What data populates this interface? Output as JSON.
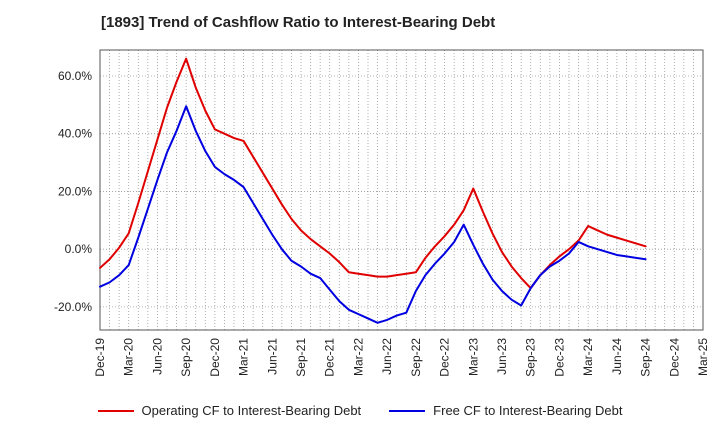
{
  "title": "[1893]  Trend of Cashflow Ratio to Interest-Bearing Debt",
  "colors": {
    "operating": "#e00000",
    "free": "#0000e0",
    "grid": "#999999"
  },
  "chart_data": {
    "type": "line",
    "title": "[1893]  Trend of Cashflow Ratio to Interest-Bearing Debt",
    "xlabel": "",
    "ylabel": "",
    "x": [
      "Dec-19",
      "Jan-20",
      "Feb-20",
      "Mar-20",
      "Apr-20",
      "May-20",
      "Jun-20",
      "Jul-20",
      "Aug-20",
      "Sep-20",
      "Oct-20",
      "Nov-20",
      "Dec-20",
      "Jan-21",
      "Feb-21",
      "Mar-21",
      "Apr-21",
      "May-21",
      "Jun-21",
      "Jul-21",
      "Aug-21",
      "Sep-21",
      "Oct-21",
      "Nov-21",
      "Dec-21",
      "Jan-22",
      "Feb-22",
      "Mar-22",
      "Apr-22",
      "May-22",
      "Jun-22",
      "Jul-22",
      "Aug-22",
      "Sep-22",
      "Oct-22",
      "Nov-22",
      "Dec-22",
      "Jan-23",
      "Feb-23",
      "Mar-23",
      "Apr-23",
      "May-23",
      "Jun-23",
      "Jul-23",
      "Aug-23",
      "Sep-23",
      "Oct-23",
      "Nov-23",
      "Dec-23",
      "Jan-24",
      "Feb-24",
      "Mar-24",
      "Apr-24",
      "May-24",
      "Jun-24",
      "Jul-24",
      "Aug-24",
      "Sep-24"
    ],
    "x_ticks": [
      "Dec-19",
      "Mar-20",
      "Jun-20",
      "Sep-20",
      "Dec-20",
      "Mar-21",
      "Jun-21",
      "Sep-21",
      "Dec-21",
      "Mar-22",
      "Jun-22",
      "Sep-22",
      "Dec-22",
      "Mar-23",
      "Jun-23",
      "Sep-23",
      "Dec-23",
      "Mar-24",
      "Jun-24",
      "Sep-24",
      "Dec-24",
      "Mar-25"
    ],
    "x_range": [
      "Dec-19",
      "Mar-25"
    ],
    "ylim": [
      -28,
      69
    ],
    "y_ticks": [
      -20,
      0,
      20,
      40,
      60
    ],
    "y_tick_labels": [
      "-20.0%",
      "0.0%",
      "20.0%",
      "40.0%",
      "60.0%"
    ],
    "grid": true,
    "legend_position": "bottom",
    "series": [
      {
        "name": "Operating CF to Interest-Bearing Debt",
        "color": "#e00000",
        "values": [
          -6.5,
          -3.5,
          0.5,
          5.5,
          16,
          27,
          38,
          49,
          58,
          66,
          56,
          48,
          41.5,
          40,
          38.5,
          37.5,
          32,
          26.5,
          21,
          15.5,
          10.5,
          6.5,
          3.5,
          1,
          -1.5,
          -4.5,
          -8,
          -8.5,
          -9,
          -9.5,
          -9.5,
          -9,
          -8.5,
          -8,
          -3,
          1,
          4.5,
          8.5,
          13.5,
          21,
          13,
          5.5,
          -1,
          -6,
          -10,
          -13.5,
          -9,
          -5.5,
          -2.5,
          0,
          3,
          8,
          6.5,
          5,
          4,
          3,
          2,
          1
        ]
      },
      {
        "name": "Free CF to Interest-Bearing Debt",
        "color": "#0000e0",
        "values": [
          -13,
          -11.5,
          -9,
          -5.5,
          4,
          14,
          24,
          33.5,
          41,
          49.5,
          41,
          34,
          28.5,
          26,
          24,
          21.5,
          16,
          10.5,
          5,
          0,
          -4,
          -6,
          -8.5,
          -10,
          -14,
          -18,
          -21,
          -22.5,
          -24,
          -25.5,
          -24.5,
          -23,
          -22,
          -14.5,
          -9,
          -5,
          -1.5,
          2.5,
          8.5,
          1.5,
          -5,
          -10.5,
          -14.5,
          -17.5,
          -19.5,
          -13.5,
          -9,
          -6,
          -4,
          -1.5,
          2.5,
          1,
          0,
          -1,
          -2,
          -2.5,
          -3,
          -3.5
        ]
      }
    ]
  },
  "legend": [
    {
      "label": "Operating CF to Interest-Bearing Debt",
      "color": "#e00000"
    },
    {
      "label": "Free CF to Interest-Bearing Debt",
      "color": "#0000e0"
    }
  ]
}
